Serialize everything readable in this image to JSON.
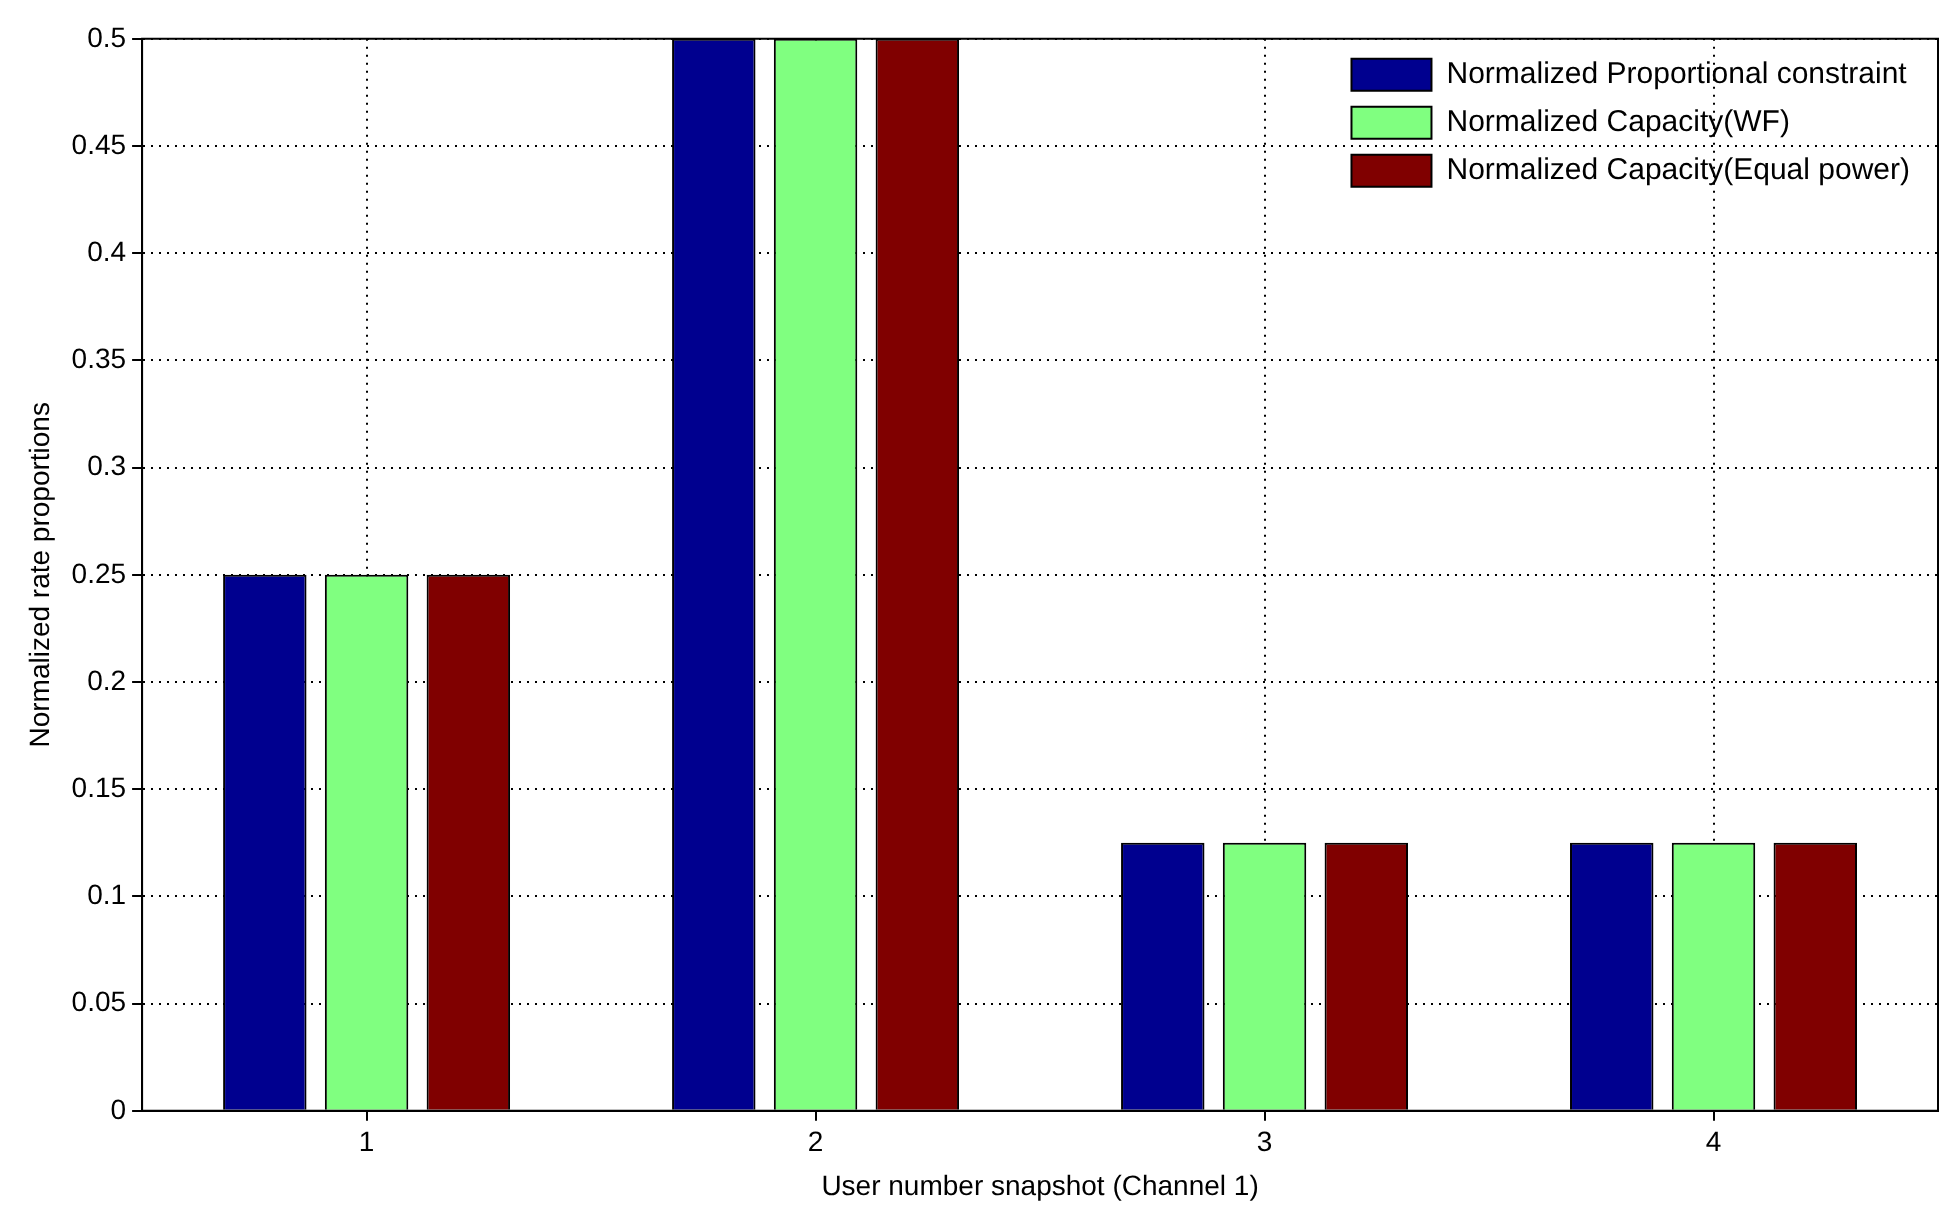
{
  "chart_data": {
    "type": "bar",
    "xlabel": "User number snapshot (Channel 1)",
    "ylabel": "Normalized rate proportions",
    "categories": [
      "1",
      "2",
      "3",
      "4"
    ],
    "series": [
      {
        "name": "Normalized Proportional constraint",
        "color": "#00008f",
        "values": [
          0.25,
          0.5,
          0.125,
          0.125
        ]
      },
      {
        "name": "Normalized Capacity(WF)",
        "color": "#80ff80",
        "values": [
          0.25,
          0.5,
          0.125,
          0.125
        ]
      },
      {
        "name": "Normalized Capacity(Equal power)",
        "color": "#800000",
        "values": [
          0.25,
          0.5,
          0.125,
          0.125
        ]
      }
    ],
    "ylim": [
      0,
      0.5
    ],
    "yticks": [
      0,
      0.05,
      0.1,
      0.15,
      0.2,
      0.25,
      0.3,
      0.35,
      0.4,
      0.45,
      0.5
    ],
    "grid": true,
    "legend": "top right"
  }
}
